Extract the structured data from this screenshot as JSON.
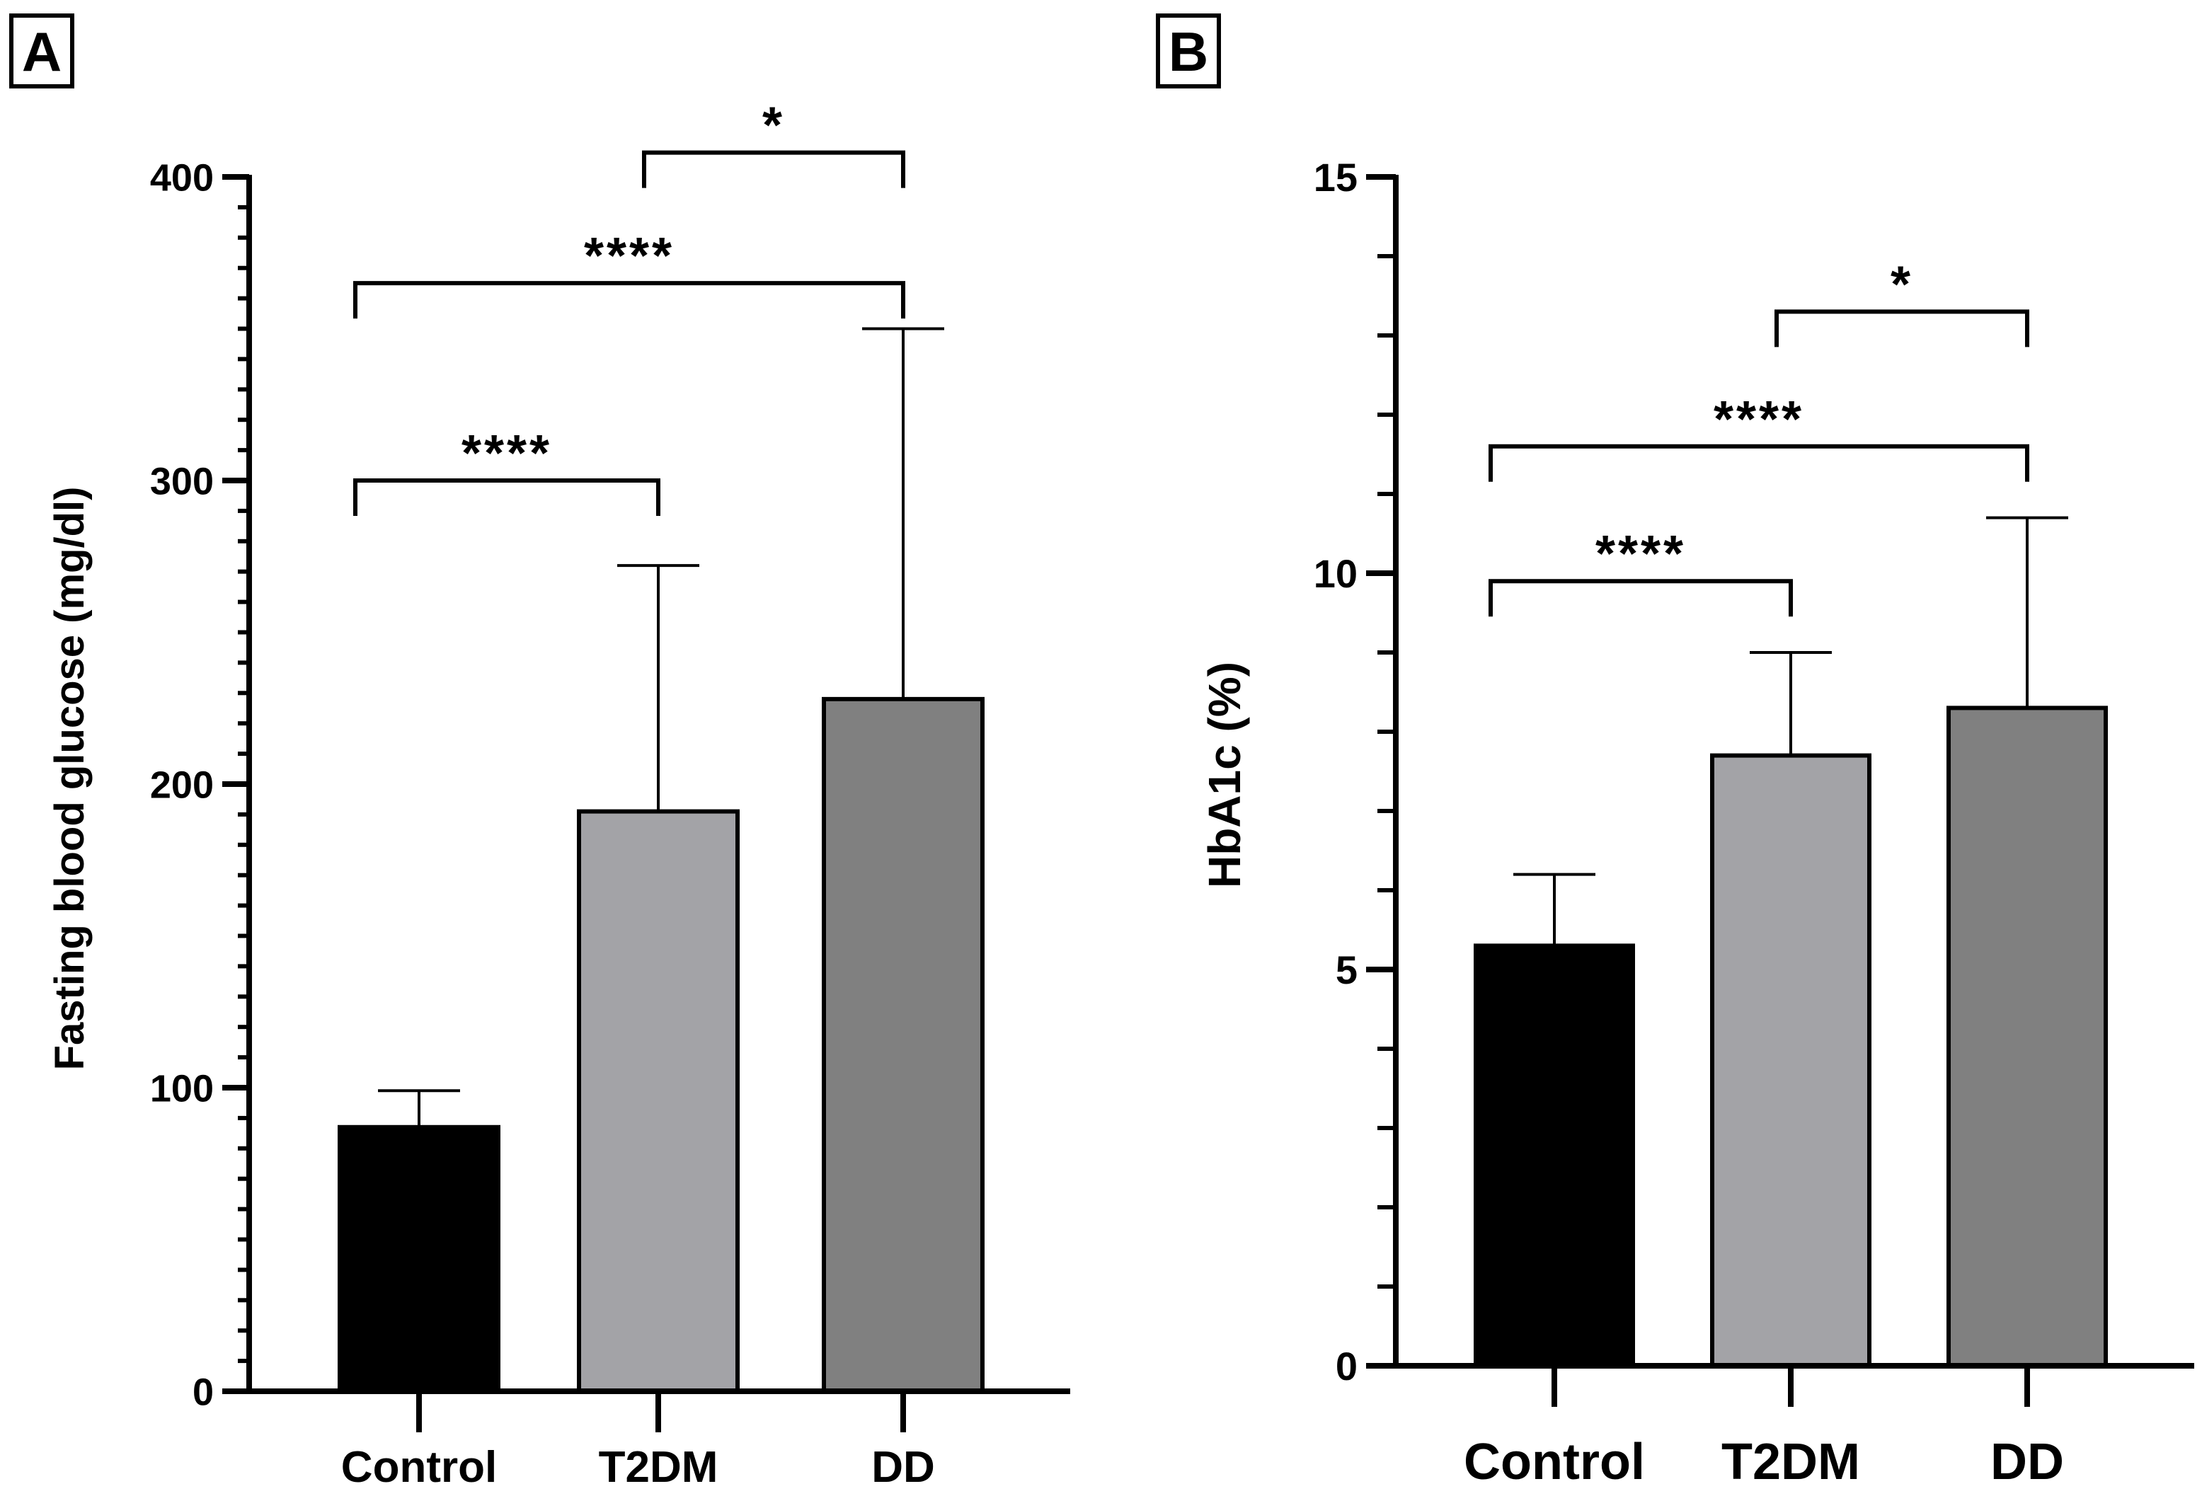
{
  "chart_data": [
    {
      "panel_label": "A",
      "type": "bar",
      "categories": [
        "Control",
        "T2DM",
        "DD"
      ],
      "values": [
        87,
        191,
        228
      ],
      "error_upper": [
        99,
        272,
        350
      ],
      "colors": [
        "#000000",
        "#a3a3a7",
        "#808080"
      ],
      "ylabel": "Fasting blood glucose (mg/dl)",
      "xlabel": "",
      "ylim": [
        0,
        400
      ],
      "major_ticks": [
        0,
        100,
        200,
        300,
        400
      ],
      "major_tick_labels": [
        "0",
        "100",
        "200",
        "300",
        "400"
      ],
      "minor_step": 10,
      "significance": [
        {
          "from": 1,
          "to": 2,
          "label": "*",
          "y": 408
        },
        {
          "from": 0,
          "to": 2,
          "label": "****",
          "y": 365
        },
        {
          "from": 0,
          "to": 1,
          "label": "****",
          "y": 300
        }
      ]
    },
    {
      "panel_label": "B",
      "type": "bar",
      "categories": [
        "Control",
        "T2DM",
        "DD"
      ],
      "values": [
        5.3,
        7.7,
        8.3
      ],
      "error_upper": [
        6.2,
        9.0,
        10.7
      ],
      "colors": [
        "#000000",
        "#a3a3a7",
        "#808080"
      ],
      "ylabel": "HbA1c (%)",
      "xlabel": "",
      "ylim": [
        0,
        15
      ],
      "major_ticks": [
        0,
        5,
        10,
        15
      ],
      "major_tick_labels": [
        "0",
        "5",
        "10",
        "15"
      ],
      "minor_step": 1,
      "significance": [
        {
          "from": 1,
          "to": 2,
          "label": "*",
          "y": 13.3
        },
        {
          "from": 0,
          "to": 2,
          "label": "****",
          "y": 11.6
        },
        {
          "from": 0,
          "to": 1,
          "label": "****",
          "y": 9.9
        }
      ]
    }
  ]
}
